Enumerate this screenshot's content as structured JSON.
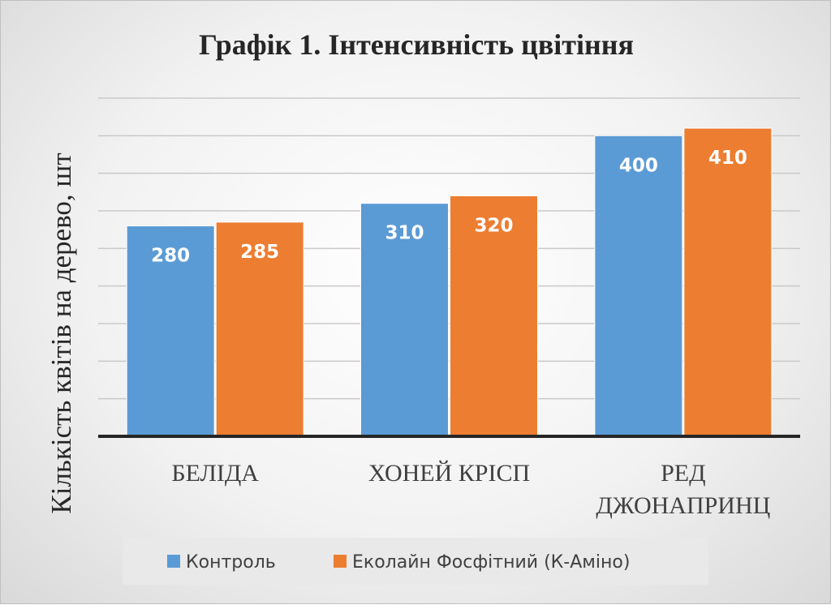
{
  "chart_data": {
    "type": "bar",
    "title": "Графік 1. Інтенсивність цвітіння",
    "ylabel": "Кількість квітів на дерево, шт",
    "xlabel": "",
    "categories": [
      [
        "БЕЛІДА"
      ],
      [
        "ХОНЕЙ КРІСП"
      ],
      [
        "РЕД",
        "ДЖОНАПРИНЦ"
      ]
    ],
    "series": [
      {
        "name": "Контроль",
        "color": "#5b9bd5",
        "values": [
          280,
          310,
          400
        ]
      },
      {
        "name": "Еколайн Фосфітний (К-Аміно)",
        "color": "#ed7d31",
        "values": [
          285,
          320,
          410
        ]
      }
    ],
    "ylim": [
      0,
      450
    ],
    "gridlines": true,
    "y_tick_labels_shown": false,
    "data_labels": true,
    "legend_position": "bottom"
  }
}
